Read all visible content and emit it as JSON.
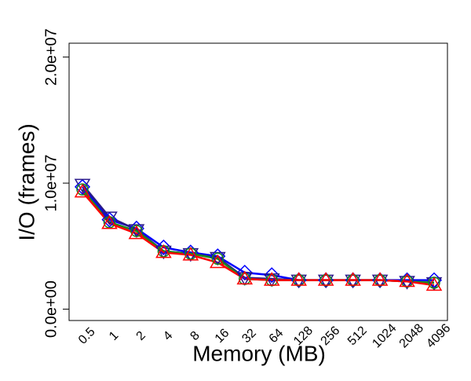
{
  "chart_data": {
    "type": "line",
    "x_label": "Memory (MB)",
    "y_label": "I/O (frames)",
    "categories": [
      "0.5",
      "1",
      "2",
      "4",
      "8",
      "16",
      "32",
      "64",
      "128",
      "256",
      "512",
      "1024",
      "2048",
      "4096"
    ],
    "series": [
      {
        "color": "#0000ff",
        "marker": "diamond",
        "values": [
          9700000,
          7100000,
          6400000,
          4900000,
          4500000,
          4200000,
          2900000,
          2700000,
          2300000,
          2300000,
          2300000,
          2300000,
          2300000,
          2300000
        ]
      },
      {
        "color": "#2a1a8a",
        "marker": "triangle-down",
        "values": [
          9900000,
          7300000,
          6300000,
          4600000,
          4400000,
          4100000,
          2500000,
          2400000,
          2300000,
          2300000,
          2300000,
          2300000,
          2200000,
          2100000
        ]
      },
      {
        "color": "#1a8a1a",
        "marker": "circle",
        "values": [
          9500000,
          6900000,
          6200000,
          4600000,
          4400000,
          4000000,
          2400000,
          2300000,
          2300000,
          2300000,
          2300000,
          2300000,
          2200000,
          2100000
        ]
      },
      {
        "color": "#ff0000",
        "marker": "triangle-up",
        "values": [
          9300000,
          6800000,
          6000000,
          4500000,
          4300000,
          3700000,
          2400000,
          2300000,
          2300000,
          2300000,
          2300000,
          2300000,
          2200000,
          1900000
        ]
      }
    ],
    "ylim": [
      -900000,
      21100000
    ],
    "yticks": [
      {
        "value": 0,
        "label": "0.0e+00"
      },
      {
        "value": 10000000,
        "label": "1.0e+07"
      },
      {
        "value": 20000000,
        "label": "2.0e+07"
      }
    ]
  }
}
